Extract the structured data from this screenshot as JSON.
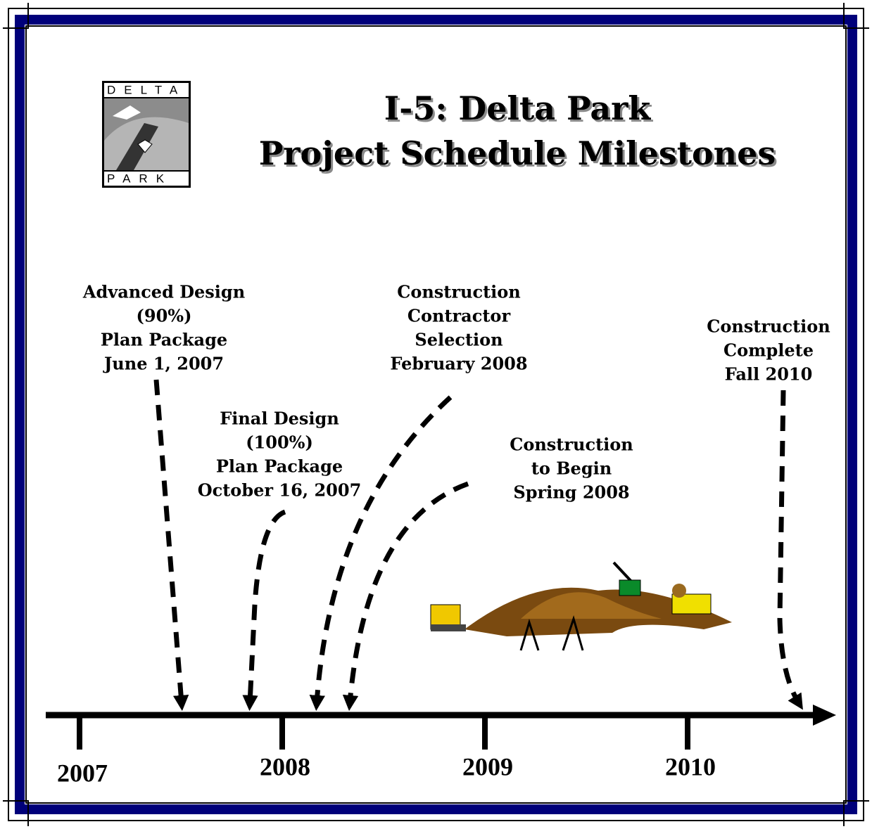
{
  "header": {
    "logo": {
      "top": "DELTA",
      "bottom": "PARK"
    },
    "title": [
      "I-5: Delta Park",
      "Project Schedule Milestones"
    ]
  },
  "milestones": [
    {
      "lines": [
        "Advanced Design",
        "(90%)",
        "Plan Package",
        "June 1, 2007"
      ]
    },
    {
      "lines": [
        "Final Design",
        "(100%)",
        "Plan Package",
        "October 16, 2007"
      ]
    },
    {
      "lines": [
        "Construction",
        "Contractor",
        "Selection",
        "February 2008"
      ]
    },
    {
      "lines": [
        "Construction",
        "to Begin",
        "Spring 2008"
      ]
    },
    {
      "lines": [
        "Construction",
        "Complete",
        "Fall 2010"
      ]
    }
  ],
  "timeline": {
    "years": [
      "2007",
      "2008",
      "2009",
      "2010"
    ]
  }
}
